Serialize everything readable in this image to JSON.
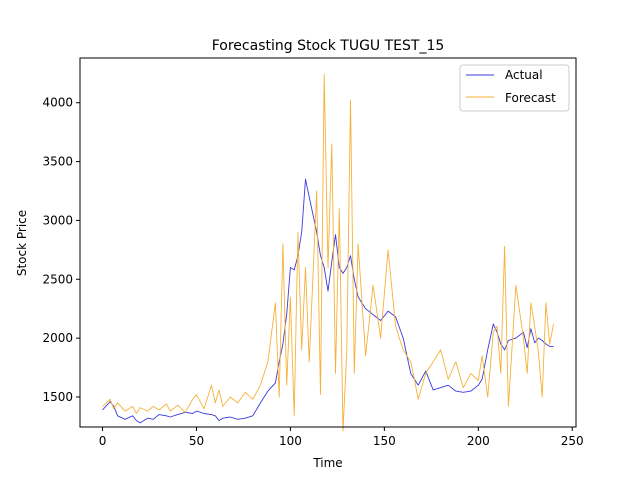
{
  "chart_data": {
    "type": "line",
    "title": "Forecasting Stock TUGU TEST_15",
    "xlabel": "Time",
    "ylabel": "Stock Price",
    "xlim": [
      -12,
      252
    ],
    "ylim": [
      1245,
      4380
    ],
    "xticks": [
      0,
      50,
      100,
      150,
      200,
      250
    ],
    "yticks": [
      1500,
      2000,
      2500,
      3000,
      3500,
      4000
    ],
    "grid": false,
    "legend": "top-right",
    "x": [
      0,
      4,
      6,
      8,
      12,
      16,
      18,
      20,
      24,
      27,
      30,
      34,
      36,
      40,
      44,
      48,
      50,
      54,
      58,
      60,
      62,
      64,
      68,
      72,
      76,
      80,
      84,
      88,
      92,
      94,
      96,
      98,
      100,
      102,
      104,
      106,
      108,
      110,
      114,
      116,
      118,
      120,
      122,
      124,
      126,
      128,
      130,
      132,
      134,
      136,
      140,
      144,
      148,
      152,
      156,
      160,
      164,
      166,
      168,
      172,
      176,
      180,
      184,
      188,
      192,
      196,
      200,
      202,
      205,
      208,
      210,
      212,
      214,
      216,
      220,
      224,
      226,
      228,
      230,
      232,
      234,
      236,
      238,
      240
    ],
    "series": [
      {
        "name": "Actual",
        "color": "#3b3bdc",
        "values": [
          1390,
          1460,
          1420,
          1340,
          1310,
          1340,
          1300,
          1280,
          1320,
          1310,
          1350,
          1340,
          1330,
          1350,
          1370,
          1360,
          1380,
          1360,
          1350,
          1340,
          1300,
          1320,
          1330,
          1310,
          1320,
          1340,
          1450,
          1550,
          1620,
          1800,
          1950,
          2200,
          2600,
          2580,
          2700,
          2900,
          3350,
          3200,
          2900,
          2700,
          2600,
          2400,
          2650,
          2880,
          2600,
          2550,
          2600,
          2700,
          2500,
          2350,
          2250,
          2200,
          2150,
          2230,
          2180,
          2000,
          1700,
          1650,
          1600,
          1720,
          1560,
          1580,
          1600,
          1550,
          1540,
          1550,
          1600,
          1650,
          1900,
          2120,
          2050,
          1950,
          1900,
          1980,
          2000,
          2050,
          1920,
          2080,
          1960,
          2000,
          1980,
          1950,
          1930,
          1930
        ]
      },
      {
        "name": "Forecast",
        "color": "#f5b23a",
        "values": [
          1420,
          1480,
          1400,
          1450,
          1380,
          1420,
          1360,
          1410,
          1380,
          1420,
          1390,
          1440,
          1380,
          1430,
          1370,
          1480,
          1520,
          1400,
          1600,
          1450,
          1560,
          1420,
          1500,
          1450,
          1540,
          1480,
          1600,
          1800,
          2300,
          1500,
          2800,
          1600,
          2350,
          1340,
          2900,
          1900,
          2600,
          1800,
          3250,
          1520,
          4240,
          2600,
          3650,
          1700,
          3100,
          1210,
          1900,
          4020,
          1700,
          2800,
          1850,
          2450,
          2000,
          2750,
          2100,
          1900,
          1800,
          1650,
          1480,
          1700,
          1800,
          1900,
          1650,
          1800,
          1580,
          1700,
          1640,
          1850,
          1500,
          2050,
          2100,
          1700,
          2780,
          1420,
          2450,
          2000,
          1700,
          2300,
          2100,
          1880,
          1500,
          2300,
          1950,
          2120
        ]
      }
    ]
  }
}
